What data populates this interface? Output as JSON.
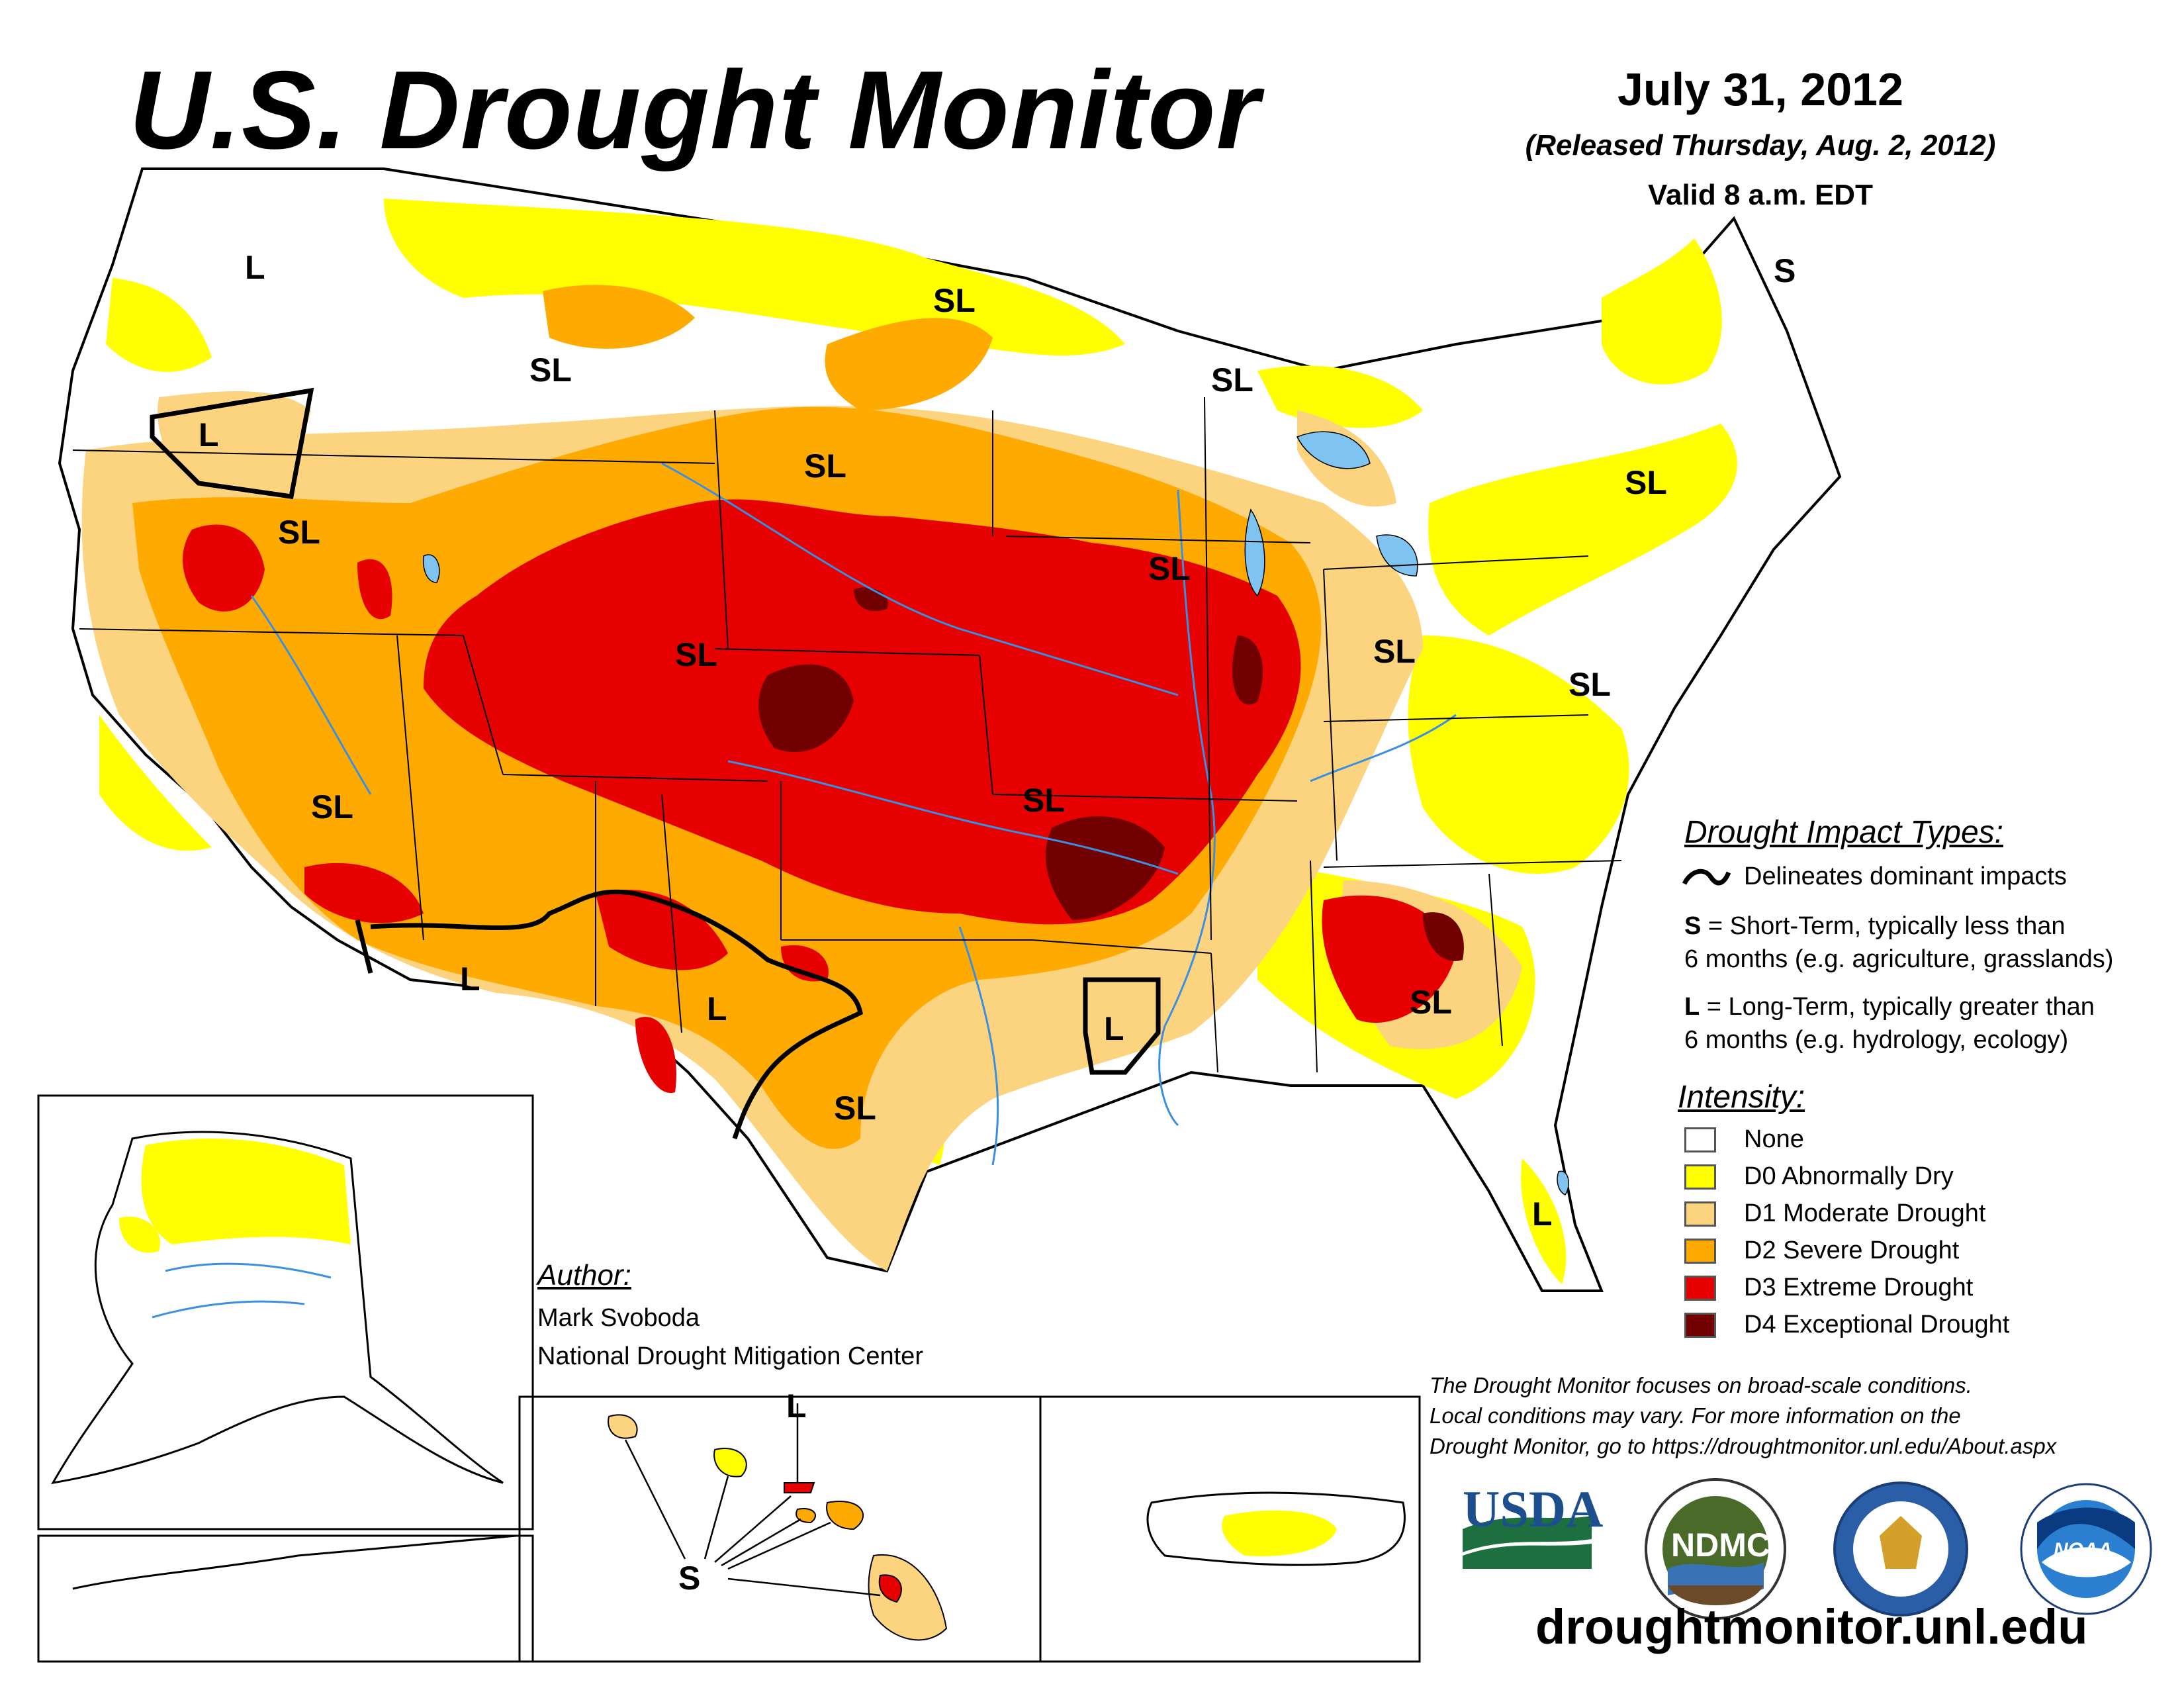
{
  "header": {
    "title": "U.S. Drought Monitor",
    "date": "July 31, 2012",
    "released": "(Released Thursday, Aug. 2, 2012)",
    "valid": "Valid 8 a.m. EDT"
  },
  "impact_types": {
    "heading": "Drought Impact Types:",
    "delineates": "Delineates dominant impacts",
    "short_term_key": "S",
    "short_term_line1": " = Short-Term, typically less than",
    "short_term_line2": "6 months (e.g. agriculture, grasslands)",
    "long_term_key": "L",
    "long_term_line1": " = Long-Term, typically greater than",
    "long_term_line2": "6 months (e.g. hydrology, ecology)"
  },
  "intensity": {
    "heading": "Intensity:",
    "items": [
      {
        "label": "None",
        "color": "#ffffff"
      },
      {
        "label": "D0 Abnormally Dry",
        "color": "#ffff00"
      },
      {
        "label": "D1 Moderate Drought",
        "color": "#fcd37f"
      },
      {
        "label": "D2 Severe Drought",
        "color": "#ffaa00"
      },
      {
        "label": "D3 Extreme Drought",
        "color": "#e60000"
      },
      {
        "label": "D4 Exceptional Drought",
        "color": "#730000"
      }
    ]
  },
  "author": {
    "heading": "Author:",
    "name": "Mark Svoboda",
    "org": "National Drought Mitigation Center"
  },
  "disclaimer": {
    "line1": "The Drought Monitor focuses on broad-scale conditions.",
    "line2": "Local conditions may vary. For more information on the",
    "line3": "Drought Monitor, go to https://droughtmonitor.unl.edu/About.aspx"
  },
  "website": "droughtmonitor.unl.edu",
  "logos": {
    "usda": "USDA",
    "ndmc": "NDMC",
    "noaa": "NOAA"
  },
  "map_labels": {
    "sl": "SL",
    "l": "L",
    "s": "S"
  },
  "colors": {
    "water": "#7fc3f0",
    "river": "#3a8fe0",
    "border": "#000000"
  }
}
